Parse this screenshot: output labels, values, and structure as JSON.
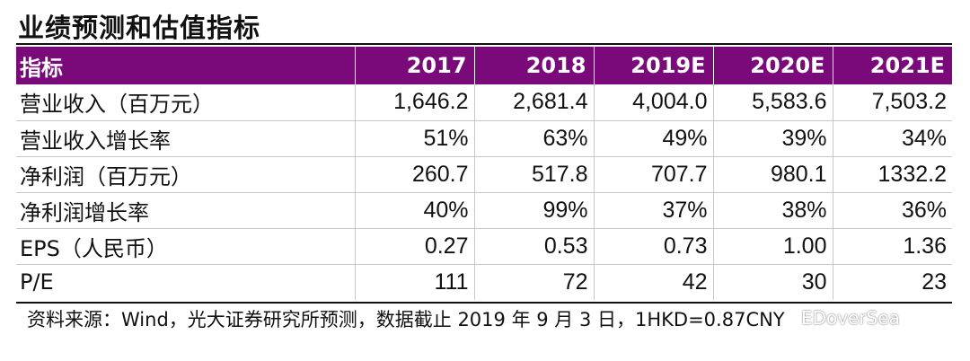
{
  "title": "业绩预测和估值指标",
  "table": {
    "headers": [
      "指标",
      "2017",
      "2018",
      "2019E",
      "2020E",
      "2021E"
    ],
    "rows": [
      [
        "营业收入（百万元）",
        "1,646.2",
        "2,681.4",
        "4,004.0",
        "5,583.6",
        "7,503.2"
      ],
      [
        "营业收入增长率",
        "51%",
        "63%",
        "49%",
        "39%",
        "34%"
      ],
      [
        "净利润（百万元）",
        "260.7",
        "517.8",
        "707.7",
        "980.1",
        "1332.2"
      ],
      [
        "净利润增长率",
        "40%",
        "99%",
        "37%",
        "38%",
        "36%"
      ],
      [
        "EPS（人民币）",
        "0.27",
        "0.53",
        "0.73",
        "1.00",
        "1.36"
      ],
      [
        "P/E",
        "111",
        "72",
        "42",
        "30",
        "23"
      ]
    ]
  },
  "source": "资料来源：Wind，光大证券研究所预测，数据截止 2019 年 9 月 3 日，1HKD=0.87CNY",
  "watermark": "EDoverSea",
  "colors": {
    "header_bg": "#7a0a7a",
    "header_text": "#ffffff"
  }
}
